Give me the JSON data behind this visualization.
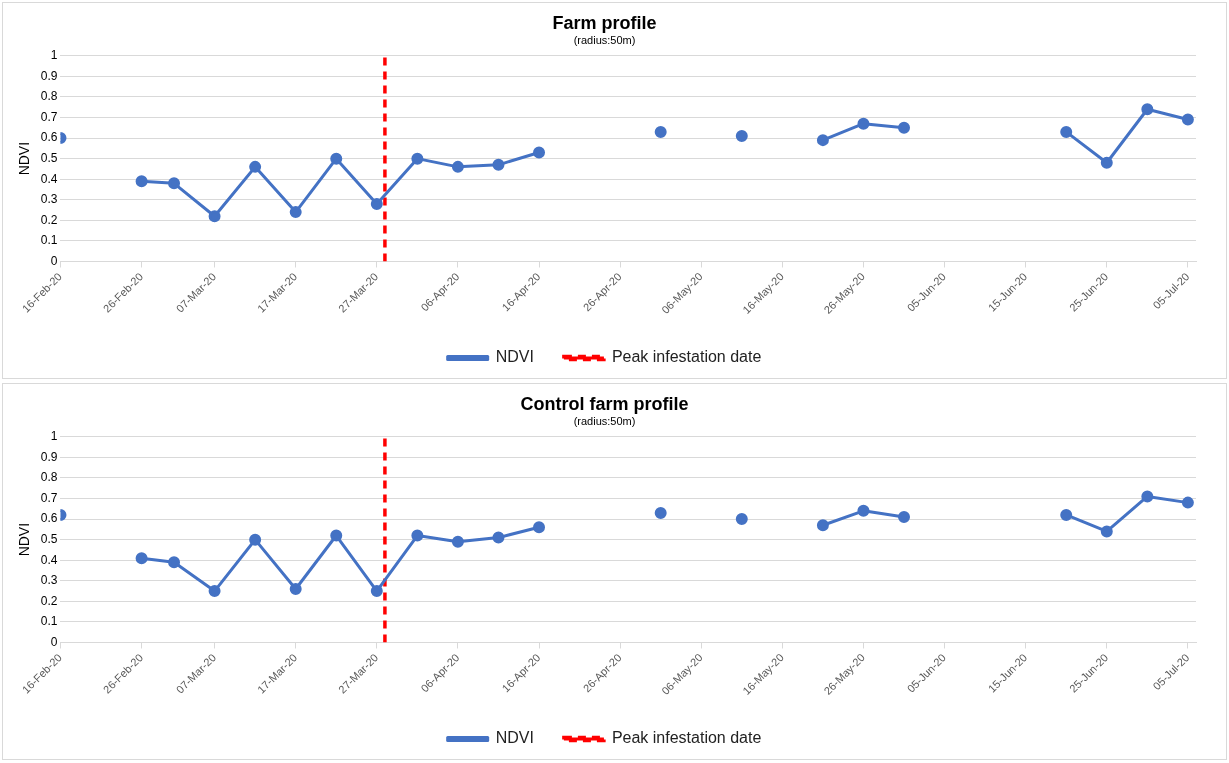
{
  "chart_data": [
    {
      "type": "line",
      "title": "Farm profile",
      "subtitle": "(radius:50m)",
      "ylabel": "NDVI",
      "x": [
        "--02-16",
        "--02-21",
        "--02-26",
        "--03-02",
        "--03-07",
        "--03-12",
        "--03-17",
        "--03-22",
        "--03-27",
        "--04-01",
        "--04-06",
        "--04-11",
        "--04-16",
        "--04-21",
        "--04-26",
        "--05-01",
        "--05-06",
        "--05-11",
        "--05-16",
        "--05-21",
        "--05-26",
        "--05-31",
        "--06-05",
        "--06-10",
        "--06-15",
        "--06-20",
        "--06-25",
        "--06-30",
        "--07-05"
      ],
      "series": [
        {
          "name": "NDVI",
          "color": "#4472c4",
          "values": [
            0.6,
            null,
            0.39,
            0.38,
            0.22,
            0.46,
            0.24,
            0.5,
            0.28,
            0.5,
            0.46,
            0.47,
            0.53,
            null,
            null,
            0.63,
            null,
            0.61,
            null,
            0.59,
            0.67,
            0.65,
            null,
            null,
            null,
            0.63,
            0.48,
            0.74,
            0.69
          ]
        }
      ],
      "ref_lines": [
        {
          "axis": "x",
          "value": "--03-28",
          "label": "Peak infestation date",
          "color": "#ff0000",
          "line_style": "dashed"
        }
      ],
      "xlim": [
        "--02-16",
        "--07-06"
      ],
      "xticks": [
        {
          "value": "--02-16",
          "label": "16-Feb-20"
        },
        {
          "value": "--02-26",
          "label": "26-Feb-20"
        },
        {
          "value": "--03-07",
          "label": "07-Mar-20"
        },
        {
          "value": "--03-17",
          "label": "17-Mar-20"
        },
        {
          "value": "--03-27",
          "label": "27-Mar-20"
        },
        {
          "value": "--04-06",
          "label": "06-Apr-20"
        },
        {
          "value": "--04-16",
          "label": "16-Apr-20"
        },
        {
          "value": "--04-26",
          "label": "26-Apr-20"
        },
        {
          "value": "--05-06",
          "label": "06-May-20"
        },
        {
          "value": "--05-16",
          "label": "16-May-20"
        },
        {
          "value": "--05-26",
          "label": "26-May-20"
        },
        {
          "value": "--06-05",
          "label": "05-Jun-20"
        },
        {
          "value": "--06-15",
          "label": "15-Jun-20"
        },
        {
          "value": "--06-25",
          "label": "25-Jun-20"
        },
        {
          "value": "--07-05",
          "label": "05-Jul-20"
        }
      ],
      "ylim": [
        0,
        1
      ],
      "yticks": [
        0,
        0.1,
        0.2,
        0.3,
        0.4,
        0.5,
        0.6,
        0.7,
        0.8,
        0.9,
        1
      ],
      "grid": "y",
      "legend": "bottom",
      "marker": "circle",
      "line_style": "solid"
    },
    {
      "type": "line",
      "title": "Control farm profile",
      "subtitle": "(radius:50m)",
      "ylabel": "NDVI",
      "x": [
        "--02-16",
        "--02-21",
        "--02-26",
        "--03-02",
        "--03-07",
        "--03-12",
        "--03-17",
        "--03-22",
        "--03-27",
        "--04-01",
        "--04-06",
        "--04-11",
        "--04-16",
        "--04-21",
        "--04-26",
        "--05-01",
        "--05-06",
        "--05-11",
        "--05-16",
        "--05-21",
        "--05-26",
        "--05-31",
        "--06-05",
        "--06-10",
        "--06-15",
        "--06-20",
        "--06-25",
        "--06-30",
        "--07-05"
      ],
      "series": [
        {
          "name": "NDVI",
          "color": "#4472c4",
          "values": [
            0.62,
            null,
            0.41,
            0.39,
            0.25,
            0.5,
            0.26,
            0.52,
            0.25,
            0.52,
            0.49,
            0.51,
            0.56,
            null,
            null,
            0.63,
            null,
            0.6,
            null,
            0.57,
            0.64,
            0.61,
            null,
            null,
            null,
            0.62,
            0.54,
            0.71,
            0.68
          ]
        }
      ],
      "ref_lines": [
        {
          "axis": "x",
          "value": "--03-28",
          "label": "Peak infestation date",
          "color": "#ff0000",
          "line_style": "dashed"
        }
      ],
      "xlim": [
        "--02-16",
        "--07-06"
      ],
      "xticks": [
        {
          "value": "--02-16",
          "label": "16-Feb-20"
        },
        {
          "value": "--02-26",
          "label": "26-Feb-20"
        },
        {
          "value": "--03-07",
          "label": "07-Mar-20"
        },
        {
          "value": "--03-17",
          "label": "17-Mar-20"
        },
        {
          "value": "--03-27",
          "label": "27-Mar-20"
        },
        {
          "value": "--04-06",
          "label": "06-Apr-20"
        },
        {
          "value": "--04-16",
          "label": "16-Apr-20"
        },
        {
          "value": "--04-26",
          "label": "26-Apr-20"
        },
        {
          "value": "--05-06",
          "label": "06-May-20"
        },
        {
          "value": "--05-16",
          "label": "16-May-20"
        },
        {
          "value": "--05-26",
          "label": "26-May-20"
        },
        {
          "value": "--06-05",
          "label": "05-Jun-20"
        },
        {
          "value": "--06-15",
          "label": "15-Jun-20"
        },
        {
          "value": "--06-25",
          "label": "25-Jun-20"
        },
        {
          "value": "--07-05",
          "label": "05-Jul-20"
        }
      ],
      "ylim": [
        0,
        1
      ],
      "yticks": [
        0,
        0.1,
        0.2,
        0.3,
        0.4,
        0.5,
        0.6,
        0.7,
        0.8,
        0.9,
        1
      ],
      "grid": "y",
      "legend": "bottom",
      "marker": "circle",
      "line_style": "solid"
    }
  ]
}
